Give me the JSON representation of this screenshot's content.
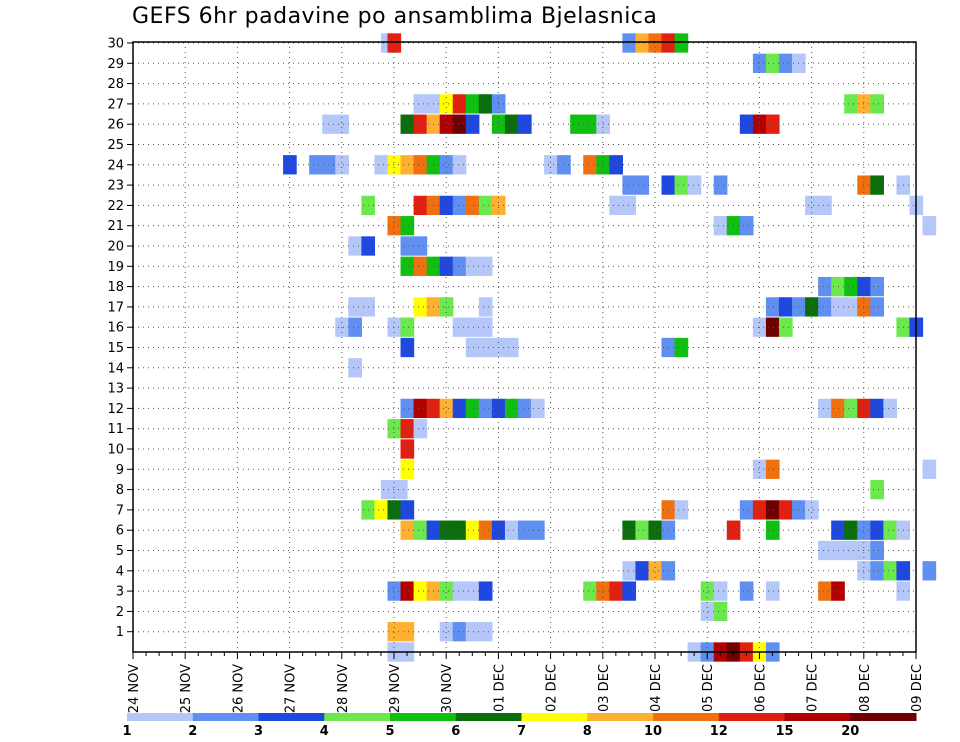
{
  "title": "GEFS 6hr padavine po ansamblima Bjelasnica",
  "colors": {
    "bins": [
      "#b4c7f8",
      "#5f8ff0",
      "#1f48e0",
      "#6ae84e",
      "#10c010",
      "#0a6e0a",
      "#ffff00",
      "#ffb030",
      "#f07010",
      "#e02010",
      "#b00000",
      "#6e0000"
    ]
  },
  "chart_data": {
    "type": "heatmap",
    "title": "GEFS 6hr padavine po ansamblima Bjelasnica",
    "xlabel": "",
    "ylabel": "",
    "x_unit": "6-hour step",
    "x_range": [
      0,
      60
    ],
    "y_range": [
      0,
      30
    ],
    "grid": true,
    "x_ticks": [
      "24 NOV",
      "25 NOV",
      "26 NOV",
      "27 NOV",
      "28 NOV",
      "29 NOV",
      "30 NOV",
      "01 DEC",
      "02 DEC",
      "03 DEC",
      "04 DEC",
      "05 DEC",
      "06 DEC",
      "07 DEC",
      "08 DEC",
      "09 DEC"
    ],
    "y_ticks": [
      1,
      2,
      3,
      4,
      5,
      6,
      7,
      8,
      9,
      10,
      11,
      12,
      13,
      14,
      15,
      16,
      17,
      18,
      19,
      20,
      21,
      22,
      23,
      24,
      25,
      26,
      27,
      28,
      29,
      30
    ],
    "colorbar_labels": [
      "1",
      "2",
      "3",
      "4",
      "5",
      "6",
      "7",
      "8",
      "10",
      "12",
      "15",
      "20"
    ],
    "rows": [
      {
        "m": 30,
        "c": [
          [
            19,
            1
          ],
          [
            19.5,
            10
          ],
          [
            37.5,
            2
          ],
          [
            38.5,
            8
          ],
          [
            39.5,
            9
          ],
          [
            40.5,
            10
          ],
          [
            41.5,
            5
          ]
        ]
      },
      {
        "m": 29,
        "c": [
          [
            47.5,
            2
          ],
          [
            48.5,
            4
          ],
          [
            49.5,
            2
          ],
          [
            50.5,
            1
          ]
        ]
      },
      {
        "m": 27,
        "c": [
          [
            21.5,
            1
          ],
          [
            22.5,
            1
          ],
          [
            23.5,
            7
          ],
          [
            24.5,
            10
          ],
          [
            25.5,
            5
          ],
          [
            26.5,
            6
          ],
          [
            27.5,
            2
          ],
          [
            54.5,
            4
          ],
          [
            55.5,
            8
          ],
          [
            56.5,
            4
          ]
        ]
      },
      {
        "m": 26,
        "c": [
          [
            14.5,
            1
          ],
          [
            15.5,
            1
          ],
          [
            20.5,
            6
          ],
          [
            21.5,
            10
          ],
          [
            22.5,
            8
          ],
          [
            23.5,
            11
          ],
          [
            24.5,
            12
          ],
          [
            25.5,
            3
          ],
          [
            27.5,
            5
          ],
          [
            28.5,
            6
          ],
          [
            29.5,
            3
          ],
          [
            33.5,
            5
          ],
          [
            34.5,
            5
          ],
          [
            35.5,
            1
          ],
          [
            46.5,
            3
          ],
          [
            47.5,
            11
          ],
          [
            48.5,
            10
          ]
        ]
      },
      {
        "m": 24,
        "c": [
          [
            11.5,
            3
          ],
          [
            13.5,
            2
          ],
          [
            14.5,
            2
          ],
          [
            15.5,
            1
          ],
          [
            18.5,
            1
          ],
          [
            19.5,
            7
          ],
          [
            20.5,
            8
          ],
          [
            21.5,
            9
          ],
          [
            22.5,
            5
          ],
          [
            23.5,
            2
          ],
          [
            24.5,
            1
          ],
          [
            31.5,
            1
          ],
          [
            32.5,
            2
          ],
          [
            34.5,
            9
          ],
          [
            35.5,
            5
          ],
          [
            36.5,
            3
          ]
        ]
      },
      {
        "m": 23,
        "c": [
          [
            37.5,
            2
          ],
          [
            38.5,
            2
          ],
          [
            40.5,
            3
          ],
          [
            41.5,
            4
          ],
          [
            42.5,
            1
          ],
          [
            44.5,
            2
          ],
          [
            55.5,
            9
          ],
          [
            56.5,
            6
          ],
          [
            58.5,
            1
          ]
        ]
      },
      {
        "m": 22,
        "c": [
          [
            17.5,
            4
          ],
          [
            21.5,
            10
          ],
          [
            22.5,
            9
          ],
          [
            23.5,
            3
          ],
          [
            24.5,
            2
          ],
          [
            25.5,
            9
          ],
          [
            26.5,
            4
          ],
          [
            27.5,
            8
          ],
          [
            36.5,
            1
          ],
          [
            37.5,
            1
          ],
          [
            51.5,
            1
          ],
          [
            52.5,
            1
          ],
          [
            59.5,
            1
          ]
        ]
      },
      {
        "m": 21,
        "c": [
          [
            19.5,
            9
          ],
          [
            20.5,
            5
          ],
          [
            44.5,
            1
          ],
          [
            45.5,
            5
          ],
          [
            46.5,
            2
          ],
          [
            60.5,
            1
          ]
        ]
      },
      {
        "m": 20,
        "c": [
          [
            16.5,
            1
          ],
          [
            17.5,
            3
          ],
          [
            20.5,
            2
          ],
          [
            21.5,
            2
          ]
        ]
      },
      {
        "m": 19,
        "c": [
          [
            20.5,
            5
          ],
          [
            21.5,
            9
          ],
          [
            22.5,
            5
          ],
          [
            23.5,
            3
          ],
          [
            24.5,
            2
          ],
          [
            25.5,
            1
          ],
          [
            26.5,
            1
          ]
        ]
      },
      {
        "m": 18,
        "c": [
          [
            52.5,
            2
          ],
          [
            53.5,
            4
          ],
          [
            54.5,
            5
          ],
          [
            55.5,
            3
          ],
          [
            56.5,
            2
          ]
        ]
      },
      {
        "m": 17,
        "c": [
          [
            16.5,
            1
          ],
          [
            17.5,
            1
          ],
          [
            21.5,
            7
          ],
          [
            22.5,
            8
          ],
          [
            23.5,
            4
          ],
          [
            26.5,
            1
          ],
          [
            48.5,
            2
          ],
          [
            49.5,
            3
          ],
          [
            50.5,
            2
          ],
          [
            51.5,
            6
          ],
          [
            52.5,
            2
          ],
          [
            53.5,
            1
          ],
          [
            54.5,
            1
          ],
          [
            55.5,
            9
          ],
          [
            56.5,
            2
          ]
        ]
      },
      {
        "m": 16,
        "c": [
          [
            15.5,
            1
          ],
          [
            16.5,
            2
          ],
          [
            19.5,
            1
          ],
          [
            20.5,
            4
          ],
          [
            24.5,
            1
          ],
          [
            25.5,
            1
          ],
          [
            26.5,
            1
          ],
          [
            47.5,
            1
          ],
          [
            48.5,
            12
          ],
          [
            49.5,
            4
          ],
          [
            58.5,
            4
          ],
          [
            59.5,
            3
          ]
        ]
      },
      {
        "m": 15,
        "c": [
          [
            20.5,
            3
          ],
          [
            25.5,
            1
          ],
          [
            26.5,
            1
          ],
          [
            27.5,
            1
          ],
          [
            28.5,
            1
          ],
          [
            40.5,
            2
          ],
          [
            41.5,
            5
          ]
        ]
      },
      {
        "m": 14,
        "c": [
          [
            16.5,
            1
          ]
        ]
      },
      {
        "m": 12,
        "c": [
          [
            20.5,
            2
          ],
          [
            21.5,
            11
          ],
          [
            22.5,
            10
          ],
          [
            23.5,
            8
          ],
          [
            24.5,
            3
          ],
          [
            25.5,
            5
          ],
          [
            26.5,
            2
          ],
          [
            27.5,
            3
          ],
          [
            28.5,
            5
          ],
          [
            29.5,
            2
          ],
          [
            30.5,
            1
          ],
          [
            52.5,
            1
          ],
          [
            53.5,
            9
          ],
          [
            54.5,
            4
          ],
          [
            55.5,
            10
          ],
          [
            56.5,
            3
          ],
          [
            57.5,
            1
          ]
        ]
      },
      {
        "m": 11,
        "c": [
          [
            19.5,
            4
          ],
          [
            20.5,
            10
          ],
          [
            21.5,
            1
          ]
        ]
      },
      {
        "m": 10,
        "c": [
          [
            20.5,
            10
          ]
        ]
      },
      {
        "m": 9,
        "c": [
          [
            20.5,
            7
          ],
          [
            47.5,
            1
          ],
          [
            48.5,
            9
          ],
          [
            60.5,
            1
          ]
        ]
      },
      {
        "m": 8,
        "c": [
          [
            19,
            1
          ],
          [
            20,
            1
          ],
          [
            56.5,
            4
          ]
        ]
      },
      {
        "m": 7,
        "c": [
          [
            17.5,
            4
          ],
          [
            18.5,
            7
          ],
          [
            19.5,
            6
          ],
          [
            20.5,
            3
          ],
          [
            40.5,
            9
          ],
          [
            41.5,
            1
          ],
          [
            46.5,
            2
          ],
          [
            47.5,
            10
          ],
          [
            48.5,
            12
          ],
          [
            49.5,
            10
          ],
          [
            50.5,
            2
          ],
          [
            51.5,
            1
          ]
        ]
      },
      {
        "m": 6,
        "c": [
          [
            20.5,
            8
          ],
          [
            21.5,
            4
          ],
          [
            22.5,
            3
          ],
          [
            23.5,
            6
          ],
          [
            24.5,
            6
          ],
          [
            25.5,
            7
          ],
          [
            26.5,
            9
          ],
          [
            27.5,
            3
          ],
          [
            28.5,
            1
          ],
          [
            29.5,
            2
          ],
          [
            30.5,
            2
          ],
          [
            37.5,
            6
          ],
          [
            38.5,
            4
          ],
          [
            39.5,
            6
          ],
          [
            40.5,
            2
          ],
          [
            45.5,
            10
          ],
          [
            48.5,
            5
          ],
          [
            53.5,
            3
          ],
          [
            54.5,
            6
          ],
          [
            55.5,
            2
          ],
          [
            56.5,
            3
          ],
          [
            57.5,
            4
          ],
          [
            58.5,
            1
          ]
        ]
      },
      {
        "m": 5,
        "c": [
          [
            52.5,
            1
          ],
          [
            53.5,
            1
          ],
          [
            54.5,
            1
          ],
          [
            55.5,
            1
          ],
          [
            56.5,
            2
          ]
        ]
      },
      {
        "m": 4,
        "c": [
          [
            37.5,
            1
          ],
          [
            38.5,
            3
          ],
          [
            39.5,
            8
          ],
          [
            40.5,
            2
          ],
          [
            55.5,
            1
          ],
          [
            56.5,
            2
          ],
          [
            57.5,
            4
          ],
          [
            58.5,
            3
          ],
          [
            60.5,
            2
          ]
        ]
      },
      {
        "m": 3,
        "c": [
          [
            19.5,
            2
          ],
          [
            20.5,
            11
          ],
          [
            21.5,
            7
          ],
          [
            22.5,
            8
          ],
          [
            23.5,
            4
          ],
          [
            24.5,
            1
          ],
          [
            25.5,
            1
          ],
          [
            26.5,
            3
          ],
          [
            34.5,
            4
          ],
          [
            35.5,
            9
          ],
          [
            36.5,
            10
          ],
          [
            37.5,
            3
          ],
          [
            43.5,
            4
          ],
          [
            44.5,
            1
          ],
          [
            46.5,
            2
          ],
          [
            48.5,
            1
          ],
          [
            52.5,
            9
          ],
          [
            53.5,
            11
          ],
          [
            58.5,
            1
          ]
        ]
      },
      {
        "m": 2,
        "c": [
          [
            43.5,
            1
          ],
          [
            44.5,
            4
          ]
        ]
      },
      {
        "m": 1,
        "c": [
          [
            19.5,
            8
          ],
          [
            20.5,
            8
          ],
          [
            23.5,
            1
          ],
          [
            24.5,
            2
          ],
          [
            25.5,
            1
          ],
          [
            26.5,
            1
          ]
        ]
      },
      {
        "m": 0,
        "c": [
          [
            19.5,
            1
          ],
          [
            20.5,
            1
          ],
          [
            42.5,
            1
          ],
          [
            43.5,
            2
          ],
          [
            44.5,
            11
          ],
          [
            45.5,
            12
          ],
          [
            46.5,
            10
          ],
          [
            47.5,
            7
          ],
          [
            48.5,
            2
          ]
        ]
      }
    ]
  }
}
